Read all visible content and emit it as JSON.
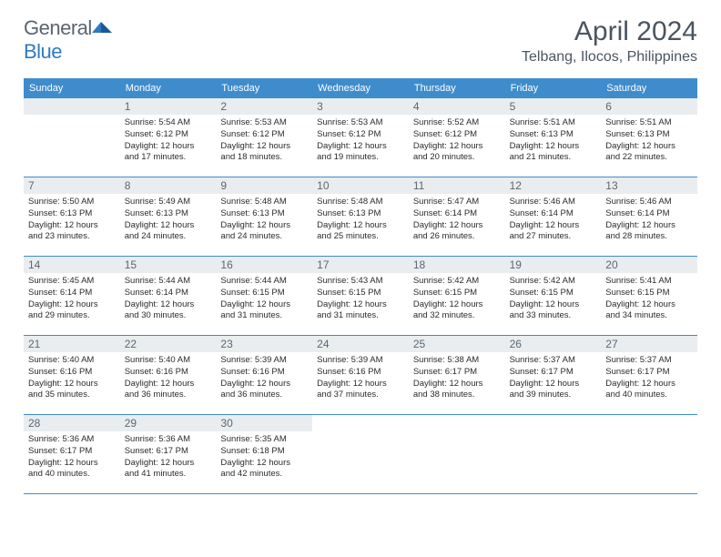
{
  "brand": {
    "text_part1": "General",
    "text_part2": "Blue"
  },
  "title": {
    "month": "April 2024",
    "location": "Telbang, Ilocos, Philippines"
  },
  "colors": {
    "header_bg": "#3e8ccc",
    "daynum_bg": "#e9edf0",
    "text_muted": "#5b6770",
    "brand_blue": "#2f7abf",
    "divider": "#3e8ccc"
  },
  "weekdays": [
    "Sunday",
    "Monday",
    "Tuesday",
    "Wednesday",
    "Thursday",
    "Friday",
    "Saturday"
  ],
  "weeks": [
    [
      {
        "n": "",
        "lines": []
      },
      {
        "n": "1",
        "lines": [
          "Sunrise: 5:54 AM",
          "Sunset: 6:12 PM",
          "Daylight: 12 hours",
          "and 17 minutes."
        ]
      },
      {
        "n": "2",
        "lines": [
          "Sunrise: 5:53 AM",
          "Sunset: 6:12 PM",
          "Daylight: 12 hours",
          "and 18 minutes."
        ]
      },
      {
        "n": "3",
        "lines": [
          "Sunrise: 5:53 AM",
          "Sunset: 6:12 PM",
          "Daylight: 12 hours",
          "and 19 minutes."
        ]
      },
      {
        "n": "4",
        "lines": [
          "Sunrise: 5:52 AM",
          "Sunset: 6:12 PM",
          "Daylight: 12 hours",
          "and 20 minutes."
        ]
      },
      {
        "n": "5",
        "lines": [
          "Sunrise: 5:51 AM",
          "Sunset: 6:13 PM",
          "Daylight: 12 hours",
          "and 21 minutes."
        ]
      },
      {
        "n": "6",
        "lines": [
          "Sunrise: 5:51 AM",
          "Sunset: 6:13 PM",
          "Daylight: 12 hours",
          "and 22 minutes."
        ]
      }
    ],
    [
      {
        "n": "7",
        "lines": [
          "Sunrise: 5:50 AM",
          "Sunset: 6:13 PM",
          "Daylight: 12 hours",
          "and 23 minutes."
        ]
      },
      {
        "n": "8",
        "lines": [
          "Sunrise: 5:49 AM",
          "Sunset: 6:13 PM",
          "Daylight: 12 hours",
          "and 24 minutes."
        ]
      },
      {
        "n": "9",
        "lines": [
          "Sunrise: 5:48 AM",
          "Sunset: 6:13 PM",
          "Daylight: 12 hours",
          "and 24 minutes."
        ]
      },
      {
        "n": "10",
        "lines": [
          "Sunrise: 5:48 AM",
          "Sunset: 6:13 PM",
          "Daylight: 12 hours",
          "and 25 minutes."
        ]
      },
      {
        "n": "11",
        "lines": [
          "Sunrise: 5:47 AM",
          "Sunset: 6:14 PM",
          "Daylight: 12 hours",
          "and 26 minutes."
        ]
      },
      {
        "n": "12",
        "lines": [
          "Sunrise: 5:46 AM",
          "Sunset: 6:14 PM",
          "Daylight: 12 hours",
          "and 27 minutes."
        ]
      },
      {
        "n": "13",
        "lines": [
          "Sunrise: 5:46 AM",
          "Sunset: 6:14 PM",
          "Daylight: 12 hours",
          "and 28 minutes."
        ]
      }
    ],
    [
      {
        "n": "14",
        "lines": [
          "Sunrise: 5:45 AM",
          "Sunset: 6:14 PM",
          "Daylight: 12 hours",
          "and 29 minutes."
        ]
      },
      {
        "n": "15",
        "lines": [
          "Sunrise: 5:44 AM",
          "Sunset: 6:14 PM",
          "Daylight: 12 hours",
          "and 30 minutes."
        ]
      },
      {
        "n": "16",
        "lines": [
          "Sunrise: 5:44 AM",
          "Sunset: 6:15 PM",
          "Daylight: 12 hours",
          "and 31 minutes."
        ]
      },
      {
        "n": "17",
        "lines": [
          "Sunrise: 5:43 AM",
          "Sunset: 6:15 PM",
          "Daylight: 12 hours",
          "and 31 minutes."
        ]
      },
      {
        "n": "18",
        "lines": [
          "Sunrise: 5:42 AM",
          "Sunset: 6:15 PM",
          "Daylight: 12 hours",
          "and 32 minutes."
        ]
      },
      {
        "n": "19",
        "lines": [
          "Sunrise: 5:42 AM",
          "Sunset: 6:15 PM",
          "Daylight: 12 hours",
          "and 33 minutes."
        ]
      },
      {
        "n": "20",
        "lines": [
          "Sunrise: 5:41 AM",
          "Sunset: 6:15 PM",
          "Daylight: 12 hours",
          "and 34 minutes."
        ]
      }
    ],
    [
      {
        "n": "21",
        "lines": [
          "Sunrise: 5:40 AM",
          "Sunset: 6:16 PM",
          "Daylight: 12 hours",
          "and 35 minutes."
        ]
      },
      {
        "n": "22",
        "lines": [
          "Sunrise: 5:40 AM",
          "Sunset: 6:16 PM",
          "Daylight: 12 hours",
          "and 36 minutes."
        ]
      },
      {
        "n": "23",
        "lines": [
          "Sunrise: 5:39 AM",
          "Sunset: 6:16 PM",
          "Daylight: 12 hours",
          "and 36 minutes."
        ]
      },
      {
        "n": "24",
        "lines": [
          "Sunrise: 5:39 AM",
          "Sunset: 6:16 PM",
          "Daylight: 12 hours",
          "and 37 minutes."
        ]
      },
      {
        "n": "25",
        "lines": [
          "Sunrise: 5:38 AM",
          "Sunset: 6:17 PM",
          "Daylight: 12 hours",
          "and 38 minutes."
        ]
      },
      {
        "n": "26",
        "lines": [
          "Sunrise: 5:37 AM",
          "Sunset: 6:17 PM",
          "Daylight: 12 hours",
          "and 39 minutes."
        ]
      },
      {
        "n": "27",
        "lines": [
          "Sunrise: 5:37 AM",
          "Sunset: 6:17 PM",
          "Daylight: 12 hours",
          "and 40 minutes."
        ]
      }
    ],
    [
      {
        "n": "28",
        "lines": [
          "Sunrise: 5:36 AM",
          "Sunset: 6:17 PM",
          "Daylight: 12 hours",
          "and 40 minutes."
        ]
      },
      {
        "n": "29",
        "lines": [
          "Sunrise: 5:36 AM",
          "Sunset: 6:17 PM",
          "Daylight: 12 hours",
          "and 41 minutes."
        ]
      },
      {
        "n": "30",
        "lines": [
          "Sunrise: 5:35 AM",
          "Sunset: 6:18 PM",
          "Daylight: 12 hours",
          "and 42 minutes."
        ]
      },
      {
        "n": "",
        "lines": []
      },
      {
        "n": "",
        "lines": []
      },
      {
        "n": "",
        "lines": []
      },
      {
        "n": "",
        "lines": []
      }
    ]
  ]
}
